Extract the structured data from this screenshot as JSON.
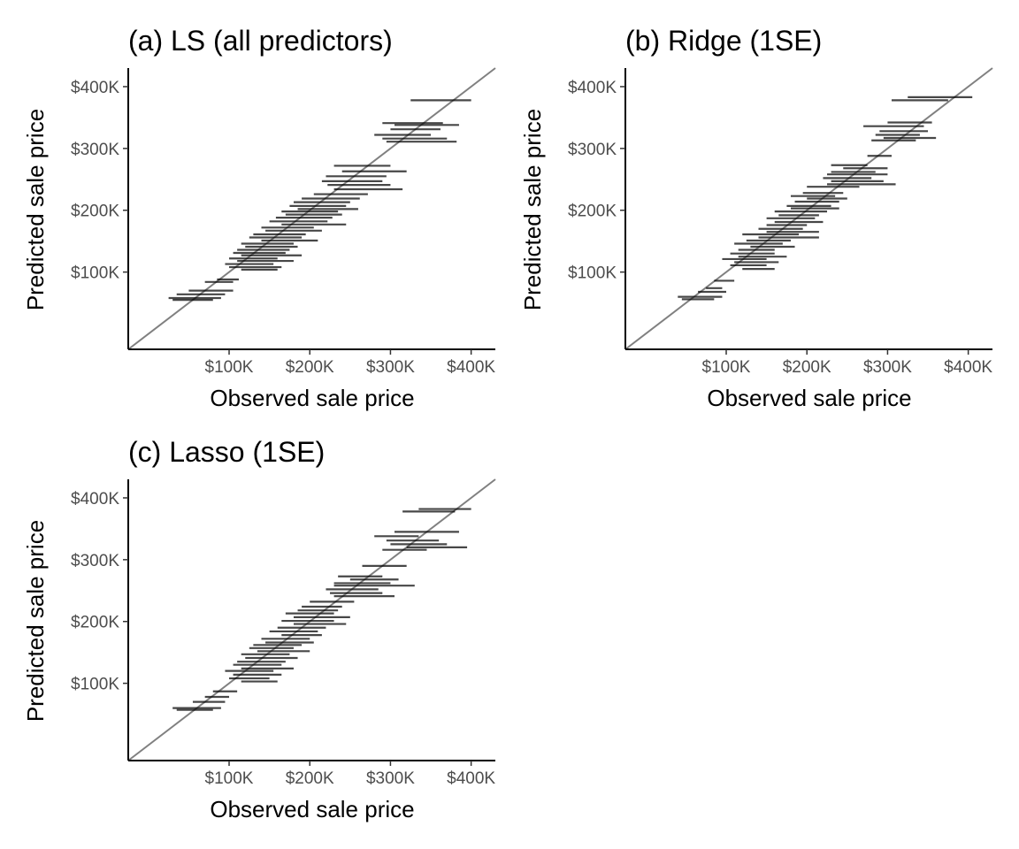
{
  "figure": {
    "xlabel": "Observed sale price",
    "ylabel": "Predicted sale price",
    "xlim": [
      -25000,
      430000
    ],
    "ylim": [
      -25000,
      430000
    ],
    "ticks": [
      {
        "value": 100000,
        "label": "$100K"
      },
      {
        "value": 200000,
        "label": "$200K"
      },
      {
        "value": 300000,
        "label": "$300K"
      },
      {
        "value": 400000,
        "label": "$400K"
      }
    ],
    "reference_line": "y = x",
    "colors": {
      "interval": "#000000",
      "reference": "#808080",
      "tick_text": "#4d4d4d"
    }
  },
  "chart_data": [
    {
      "type": "interval-plot",
      "title": "(a) LS (all predictors)",
      "xlabel": "Observed sale price",
      "ylabel": "Predicted sale price",
      "xlim": [
        -25000,
        430000
      ],
      "ylim": [
        -25000,
        430000
      ],
      "intervals": [
        {
          "y": 378000,
          "x_low": 325000,
          "x_high": 400000
        },
        {
          "y": 341000,
          "x_low": 290000,
          "x_high": 365000
        },
        {
          "y": 338000,
          "x_low": 305000,
          "x_high": 385000
        },
        {
          "y": 331000,
          "x_low": 300000,
          "x_high": 362000
        },
        {
          "y": 322000,
          "x_low": 280000,
          "x_high": 350000
        },
        {
          "y": 316000,
          "x_low": 290000,
          "x_high": 370000
        },
        {
          "y": 311000,
          "x_low": 295000,
          "x_high": 382000
        },
        {
          "y": 272000,
          "x_low": 230000,
          "x_high": 300000
        },
        {
          "y": 263000,
          "x_low": 240000,
          "x_high": 320000
        },
        {
          "y": 255000,
          "x_low": 220000,
          "x_high": 295000
        },
        {
          "y": 247000,
          "x_low": 215000,
          "x_high": 290000
        },
        {
          "y": 241000,
          "x_low": 222000,
          "x_high": 300000
        },
        {
          "y": 234000,
          "x_low": 230000,
          "x_high": 315000
        },
        {
          "y": 226000,
          "x_low": 205000,
          "x_high": 272000
        },
        {
          "y": 219000,
          "x_low": 190000,
          "x_high": 262000
        },
        {
          "y": 213000,
          "x_low": 180000,
          "x_high": 250000
        },
        {
          "y": 207000,
          "x_low": 175000,
          "x_high": 245000
        },
        {
          "y": 202000,
          "x_low": 185000,
          "x_high": 260000
        },
        {
          "y": 198000,
          "x_low": 165000,
          "x_high": 235000
        },
        {
          "y": 193000,
          "x_low": 170000,
          "x_high": 240000
        },
        {
          "y": 188000,
          "x_low": 158000,
          "x_high": 228000
        },
        {
          "y": 182000,
          "x_low": 150000,
          "x_high": 222000
        },
        {
          "y": 177000,
          "x_low": 165000,
          "x_high": 245000
        },
        {
          "y": 172000,
          "x_low": 140000,
          "x_high": 205000
        },
        {
          "y": 167000,
          "x_low": 145000,
          "x_high": 215000
        },
        {
          "y": 161000,
          "x_low": 130000,
          "x_high": 195000
        },
        {
          "y": 156000,
          "x_low": 125000,
          "x_high": 190000
        },
        {
          "y": 151000,
          "x_low": 140000,
          "x_high": 210000
        },
        {
          "y": 146000,
          "x_low": 115000,
          "x_high": 180000
        },
        {
          "y": 141000,
          "x_low": 120000,
          "x_high": 185000
        },
        {
          "y": 136000,
          "x_low": 110000,
          "x_high": 175000
        },
        {
          "y": 131000,
          "x_low": 105000,
          "x_high": 170000
        },
        {
          "y": 127000,
          "x_low": 115000,
          "x_high": 190000
        },
        {
          "y": 122000,
          "x_low": 100000,
          "x_high": 160000
        },
        {
          "y": 118000,
          "x_low": 110000,
          "x_high": 180000
        },
        {
          "y": 113000,
          "x_low": 95000,
          "x_high": 155000
        },
        {
          "y": 108000,
          "x_low": 100000,
          "x_high": 165000
        },
        {
          "y": 104000,
          "x_low": 115000,
          "x_high": 160000
        },
        {
          "y": 88000,
          "x_low": 85000,
          "x_high": 112000
        },
        {
          "y": 84000,
          "x_low": 70000,
          "x_high": 105000
        },
        {
          "y": 70000,
          "x_low": 50000,
          "x_high": 105000
        },
        {
          "y": 64000,
          "x_low": 35000,
          "x_high": 95000
        },
        {
          "y": 58000,
          "x_low": 25000,
          "x_high": 90000
        },
        {
          "y": 55000,
          "x_low": 30000,
          "x_high": 80000
        }
      ]
    },
    {
      "type": "interval-plot",
      "title": "(b) Ridge (1SE)",
      "xlabel": "Observed sale price",
      "ylabel": "Predicted sale price",
      "xlim": [
        -25000,
        430000
      ],
      "ylim": [
        -25000,
        430000
      ],
      "intervals": [
        {
          "y": 383000,
          "x_low": 325000,
          "x_high": 405000
        },
        {
          "y": 378000,
          "x_low": 305000,
          "x_high": 375000
        },
        {
          "y": 342000,
          "x_low": 300000,
          "x_high": 355000
        },
        {
          "y": 336000,
          "x_low": 270000,
          "x_high": 345000
        },
        {
          "y": 328000,
          "x_low": 290000,
          "x_high": 350000
        },
        {
          "y": 322000,
          "x_low": 285000,
          "x_high": 340000
        },
        {
          "y": 317000,
          "x_low": 295000,
          "x_high": 360000
        },
        {
          "y": 313000,
          "x_low": 280000,
          "x_high": 335000
        },
        {
          "y": 288000,
          "x_low": 275000,
          "x_high": 305000
        },
        {
          "y": 273000,
          "x_low": 230000,
          "x_high": 275000
        },
        {
          "y": 268000,
          "x_low": 245000,
          "x_high": 300000
        },
        {
          "y": 262000,
          "x_low": 230000,
          "x_high": 285000
        },
        {
          "y": 258000,
          "x_low": 225000,
          "x_high": 300000
        },
        {
          "y": 252000,
          "x_low": 220000,
          "x_high": 280000
        },
        {
          "y": 247000,
          "x_low": 230000,
          "x_high": 295000
        },
        {
          "y": 242000,
          "x_low": 225000,
          "x_high": 310000
        },
        {
          "y": 238000,
          "x_low": 200000,
          "x_high": 265000
        },
        {
          "y": 228000,
          "x_low": 195000,
          "x_high": 245000
        },
        {
          "y": 223000,
          "x_low": 180000,
          "x_high": 235000
        },
        {
          "y": 219000,
          "x_low": 200000,
          "x_high": 250000
        },
        {
          "y": 214000,
          "x_low": 185000,
          "x_high": 240000
        },
        {
          "y": 207000,
          "x_low": 175000,
          "x_high": 230000
        },
        {
          "y": 203000,
          "x_low": 180000,
          "x_high": 240000
        },
        {
          "y": 198000,
          "x_low": 160000,
          "x_high": 225000
        },
        {
          "y": 192000,
          "x_low": 165000,
          "x_high": 215000
        },
        {
          "y": 187000,
          "x_low": 150000,
          "x_high": 210000
        },
        {
          "y": 181000,
          "x_low": 160000,
          "x_high": 220000
        },
        {
          "y": 176000,
          "x_low": 150000,
          "x_high": 200000
        },
        {
          "y": 170000,
          "x_low": 140000,
          "x_high": 195000
        },
        {
          "y": 165000,
          "x_low": 150000,
          "x_high": 215000
        },
        {
          "y": 161000,
          "x_low": 120000,
          "x_high": 190000
        },
        {
          "y": 156000,
          "x_low": 140000,
          "x_high": 215000
        },
        {
          "y": 151000,
          "x_low": 125000,
          "x_high": 180000
        },
        {
          "y": 146000,
          "x_low": 110000,
          "x_high": 170000
        },
        {
          "y": 141000,
          "x_low": 130000,
          "x_high": 185000
        },
        {
          "y": 136000,
          "x_low": 115000,
          "x_high": 160000
        },
        {
          "y": 130000,
          "x_low": 105000,
          "x_high": 160000
        },
        {
          "y": 125000,
          "x_low": 115000,
          "x_high": 175000
        },
        {
          "y": 121000,
          "x_low": 95000,
          "x_high": 150000
        },
        {
          "y": 116000,
          "x_low": 110000,
          "x_high": 165000
        },
        {
          "y": 111000,
          "x_low": 105000,
          "x_high": 150000
        },
        {
          "y": 105000,
          "x_low": 120000,
          "x_high": 160000
        },
        {
          "y": 86000,
          "x_low": 85000,
          "x_high": 110000
        },
        {
          "y": 74000,
          "x_low": 75000,
          "x_high": 95000
        },
        {
          "y": 68000,
          "x_low": 65000,
          "x_high": 100000
        },
        {
          "y": 60000,
          "x_low": 40000,
          "x_high": 95000
        },
        {
          "y": 56000,
          "x_low": 45000,
          "x_high": 85000
        }
      ]
    },
    {
      "type": "interval-plot",
      "title": "(c) Lasso (1SE)",
      "xlabel": "Observed sale price",
      "ylabel": "Predicted sale price",
      "xlim": [
        -25000,
        430000
      ],
      "ylim": [
        -25000,
        430000
      ],
      "intervals": [
        {
          "y": 382000,
          "x_low": 335000,
          "x_high": 400000
        },
        {
          "y": 378000,
          "x_low": 315000,
          "x_high": 380000
        },
        {
          "y": 345000,
          "x_low": 305000,
          "x_high": 385000
        },
        {
          "y": 338000,
          "x_low": 280000,
          "x_high": 335000
        },
        {
          "y": 331000,
          "x_low": 295000,
          "x_high": 360000
        },
        {
          "y": 325000,
          "x_low": 300000,
          "x_high": 370000
        },
        {
          "y": 320000,
          "x_low": 320000,
          "x_high": 395000
        },
        {
          "y": 316000,
          "x_low": 290000,
          "x_high": 345000
        },
        {
          "y": 290000,
          "x_low": 265000,
          "x_high": 320000
        },
        {
          "y": 273000,
          "x_low": 235000,
          "x_high": 290000
        },
        {
          "y": 268000,
          "x_low": 250000,
          "x_high": 310000
        },
        {
          "y": 262000,
          "x_low": 230000,
          "x_high": 300000
        },
        {
          "y": 258000,
          "x_low": 230000,
          "x_high": 330000
        },
        {
          "y": 252000,
          "x_low": 220000,
          "x_high": 285000
        },
        {
          "y": 246000,
          "x_low": 225000,
          "x_high": 290000
        },
        {
          "y": 241000,
          "x_low": 230000,
          "x_high": 305000
        },
        {
          "y": 232000,
          "x_low": 200000,
          "x_high": 255000
        },
        {
          "y": 224000,
          "x_low": 190000,
          "x_high": 240000
        },
        {
          "y": 218000,
          "x_low": 185000,
          "x_high": 235000
        },
        {
          "y": 213000,
          "x_low": 170000,
          "x_high": 230000
        },
        {
          "y": 207000,
          "x_low": 180000,
          "x_high": 250000
        },
        {
          "y": 201000,
          "x_low": 165000,
          "x_high": 230000
        },
        {
          "y": 196000,
          "x_low": 180000,
          "x_high": 245000
        },
        {
          "y": 190000,
          "x_low": 160000,
          "x_high": 220000
        },
        {
          "y": 184000,
          "x_low": 150000,
          "x_high": 210000
        },
        {
          "y": 178000,
          "x_low": 165000,
          "x_high": 215000
        },
        {
          "y": 172000,
          "x_low": 140000,
          "x_high": 200000
        },
        {
          "y": 166000,
          "x_low": 145000,
          "x_high": 205000
        },
        {
          "y": 162000,
          "x_low": 130000,
          "x_high": 190000
        },
        {
          "y": 157000,
          "x_low": 125000,
          "x_high": 180000
        },
        {
          "y": 152000,
          "x_low": 135000,
          "x_high": 200000
        },
        {
          "y": 147000,
          "x_low": 115000,
          "x_high": 175000
        },
        {
          "y": 141000,
          "x_low": 120000,
          "x_high": 185000
        },
        {
          "y": 135000,
          "x_low": 110000,
          "x_high": 170000
        },
        {
          "y": 130000,
          "x_low": 105000,
          "x_high": 165000
        },
        {
          "y": 124000,
          "x_low": 115000,
          "x_high": 180000
        },
        {
          "y": 120000,
          "x_low": 95000,
          "x_high": 155000
        },
        {
          "y": 114000,
          "x_low": 105000,
          "x_high": 165000
        },
        {
          "y": 108000,
          "x_low": 100000,
          "x_high": 150000
        },
        {
          "y": 103000,
          "x_low": 115000,
          "x_high": 160000
        },
        {
          "y": 87000,
          "x_low": 80000,
          "x_high": 110000
        },
        {
          "y": 78000,
          "x_low": 70000,
          "x_high": 100000
        },
        {
          "y": 70000,
          "x_low": 55000,
          "x_high": 95000
        },
        {
          "y": 60000,
          "x_low": 30000,
          "x_high": 90000
        },
        {
          "y": 57000,
          "x_low": 35000,
          "x_high": 80000
        }
      ]
    }
  ]
}
